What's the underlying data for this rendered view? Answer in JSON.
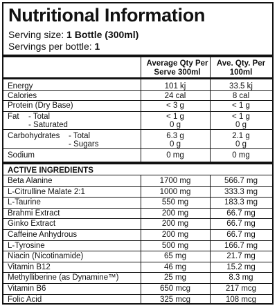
{
  "title": "Nutritional Information",
  "serving_size_label": "Serving size:",
  "serving_size_value": "1 Bottle (300ml)",
  "servings_label": "Servings per bottle:",
  "servings_value": "1",
  "columns": {
    "avg_line1": "Average Qty Per",
    "avg_line2": "Serve 300ml",
    "ave_line1": "Ave. Qty. Per",
    "ave_line2": "100ml"
  },
  "nutrition": [
    {
      "label": "Energy",
      "sub": "",
      "serve": "101 kj",
      "per100": "33.5 kj"
    },
    {
      "label": "Calories",
      "sub": "",
      "serve": "24 cal",
      "per100": "8 cal"
    },
    {
      "label": "Protein (Dry Base)",
      "sub": "",
      "serve": "< 3 g",
      "per100": "< 1 g"
    },
    {
      "label": "Fat",
      "sub": "- Total",
      "serve": "< 1 g",
      "per100": "< 1 g"
    },
    {
      "label": "",
      "sub": "- Saturated",
      "serve": "0 g",
      "per100": "0 g"
    },
    {
      "label": "Carbohydrates",
      "sub": "- Total",
      "serve": "6.3 g",
      "per100": "2.1 g"
    },
    {
      "label": "",
      "sub": "- Sugars",
      "serve": "0 g",
      "per100": "0 g"
    },
    {
      "label": "Sodium",
      "sub": "",
      "serve": "0 mg",
      "per100": "0 mg"
    }
  ],
  "active_heading": "ACTIVE INGREDIENTS",
  "ingredients": [
    {
      "label": "Beta Alanine",
      "serve": "1700 mg",
      "per100": "566.7 mg"
    },
    {
      "label": "L-Citrulline Malate 2:1",
      "serve": "1000 mg",
      "per100": "333.3 mg"
    },
    {
      "label": "L-Taurine",
      "serve": "550 mg",
      "per100": "183.3 mg"
    },
    {
      "label": "Brahmi Extract",
      "serve": "200 mg",
      "per100": "66.7 mg"
    },
    {
      "label": "Ginko Extract",
      "serve": "200 mg",
      "per100": "66.7 mg"
    },
    {
      "label": "Caffeine Anhydrous",
      "serve": "200 mg",
      "per100": "66.7 mg"
    },
    {
      "label": "L-Tyrosine",
      "serve": "500 mg",
      "per100": "166.7 mg"
    },
    {
      "label": "Niacin (Nicotinamide)",
      "serve": "65 mg",
      "per100": "21.7 mg"
    },
    {
      "label": "Vitamin B12",
      "serve": "46 mg",
      "per100": "15.2 mg"
    },
    {
      "label": "Methylliberine (as Dynamine™)",
      "serve": "25 mg",
      "per100": "8.3 mg"
    },
    {
      "label": "Vitamin B6",
      "serve": "650 mcg",
      "per100": "217 mcg"
    },
    {
      "label": "Folic Acid",
      "serve": "325 mcg",
      "per100": "108 mcg"
    }
  ]
}
